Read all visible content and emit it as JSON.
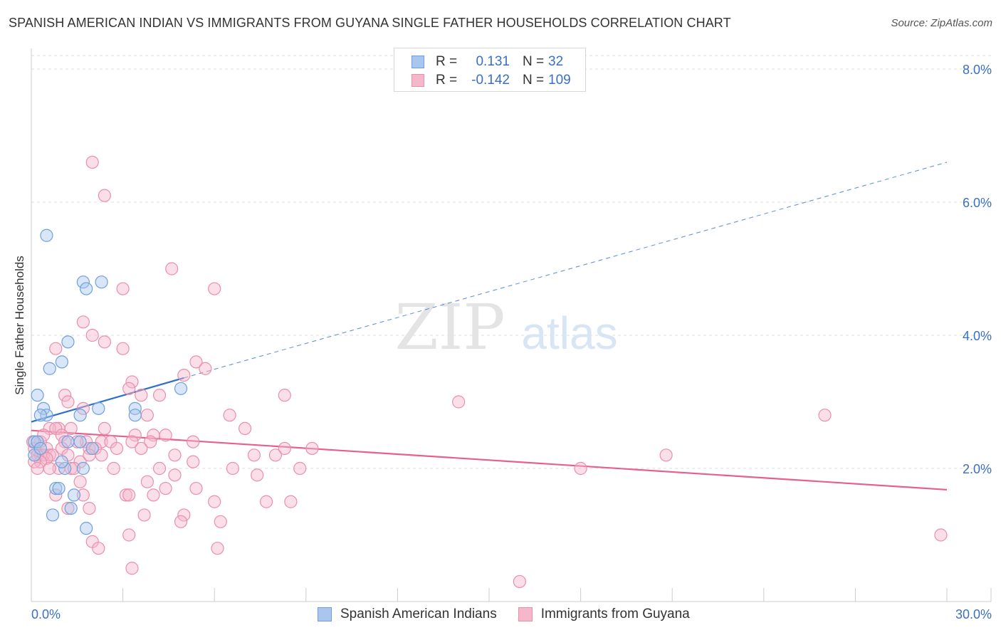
{
  "title": "SPANISH AMERICAN INDIAN VS IMMIGRANTS FROM GUYANA SINGLE FATHER HOUSEHOLDS CORRELATION CHART",
  "source": "Source: ZipAtlas.com",
  "watermark": {
    "zip": "ZIP",
    "atlas": "atlas"
  },
  "legend": {
    "rows": [
      {
        "r_label": "R =",
        "r_value": "0.131",
        "n_label": "N =",
        "n_value": "32"
      },
      {
        "r_label": "R =",
        "r_value": "-0.142",
        "n_label": "N =",
        "n_value": "109"
      }
    ]
  },
  "bottom_legend": {
    "series_a": "Spanish American Indians",
    "series_b": "Immigrants from Guyana"
  },
  "colors": {
    "blue_fill": "#a9c7ee",
    "blue_stroke": "#6f9fdd",
    "blue_line": "#2f6fca",
    "pink_fill": "#f5b8cb",
    "pink_stroke": "#eb8eaa",
    "pink_line": "#e5608d",
    "axis_label": "#3a6fc4",
    "grid": "#dddddd"
  },
  "chart_data": {
    "type": "scatter",
    "title": "SPANISH AMERICAN INDIAN VS IMMIGRANTS FROM GUYANA SINGLE FATHER HOUSEHOLDS CORRELATION CHART",
    "xlabel": "",
    "ylabel": "Single Father Households",
    "xlim": [
      0,
      30
    ],
    "ylim": [
      0,
      8.0
    ],
    "x_tick_labels": [
      "0.0%",
      "30.0%"
    ],
    "y_ticks": [
      2.0,
      4.0,
      6.0,
      8.0
    ],
    "y_tick_labels": [
      "2.0%",
      "4.0%",
      "6.0%",
      "8.0%"
    ],
    "grid": true,
    "series": [
      {
        "name": "Spanish American Indians",
        "r": 0.131,
        "n": 32,
        "trend": {
          "x0": 0.0,
          "y0": 2.7,
          "x1": 5.0,
          "y1": 3.36,
          "dashed_to_x": 30.0,
          "dashed_to_y": 6.6
        },
        "points": [
          [
            0.5,
            5.5
          ],
          [
            1.7,
            4.8
          ],
          [
            2.3,
            4.8
          ],
          [
            1.8,
            4.7
          ],
          [
            1.2,
            3.9
          ],
          [
            1.0,
            3.6
          ],
          [
            0.6,
            3.5
          ],
          [
            0.2,
            3.1
          ],
          [
            0.4,
            2.9
          ],
          [
            0.5,
            2.8
          ],
          [
            0.3,
            2.8
          ],
          [
            1.6,
            2.8
          ],
          [
            2.2,
            2.9
          ],
          [
            3.4,
            2.9
          ],
          [
            3.4,
            2.8
          ],
          [
            4.9,
            3.2
          ],
          [
            0.1,
            2.4
          ],
          [
            0.2,
            2.4
          ],
          [
            1.2,
            2.4
          ],
          [
            1.6,
            2.4
          ],
          [
            1.1,
            2.0
          ],
          [
            1.7,
            2.0
          ],
          [
            0.8,
            1.7
          ],
          [
            0.9,
            1.7
          ],
          [
            1.4,
            1.6
          ],
          [
            0.7,
            1.3
          ],
          [
            1.3,
            1.4
          ],
          [
            1.8,
            1.1
          ],
          [
            0.1,
            2.2
          ],
          [
            0.3,
            2.3
          ],
          [
            1.0,
            2.1
          ],
          [
            2.0,
            2.3
          ]
        ]
      },
      {
        "name": "Immigrants from Guyana",
        "r": -0.142,
        "n": 109,
        "trend": {
          "x0": 0.0,
          "y0": 2.57,
          "x1": 30.0,
          "y1": 1.68
        },
        "points": [
          [
            2.0,
            6.6
          ],
          [
            2.4,
            6.1
          ],
          [
            4.6,
            5.0
          ],
          [
            6.0,
            4.7
          ],
          [
            3.0,
            4.7
          ],
          [
            1.7,
            4.2
          ],
          [
            2.0,
            4.0
          ],
          [
            2.4,
            3.9
          ],
          [
            3.0,
            3.8
          ],
          [
            0.8,
            3.8
          ],
          [
            5.4,
            3.6
          ],
          [
            5.7,
            3.5
          ],
          [
            5.0,
            3.4
          ],
          [
            3.3,
            3.3
          ],
          [
            3.2,
            3.2
          ],
          [
            8.3,
            3.1
          ],
          [
            14.0,
            3.0
          ],
          [
            1.1,
            3.1
          ],
          [
            1.2,
            3.0
          ],
          [
            4.2,
            3.1
          ],
          [
            3.6,
            3.1
          ],
          [
            1.7,
            2.9
          ],
          [
            0.9,
            2.6
          ],
          [
            3.8,
            2.8
          ],
          [
            6.5,
            2.8
          ],
          [
            26.0,
            2.8
          ],
          [
            1.3,
            2.6
          ],
          [
            2.4,
            2.6
          ],
          [
            0.6,
            2.6
          ],
          [
            0.8,
            2.6
          ],
          [
            1.0,
            2.5
          ],
          [
            3.4,
            2.5
          ],
          [
            4.4,
            2.5
          ],
          [
            4.0,
            2.5
          ],
          [
            0.3,
            2.4
          ],
          [
            1.1,
            2.4
          ],
          [
            1.8,
            2.4
          ],
          [
            2.3,
            2.4
          ],
          [
            3.3,
            2.4
          ],
          [
            3.9,
            2.4
          ],
          [
            5.3,
            2.4
          ],
          [
            1.9,
            2.3
          ],
          [
            2.1,
            2.3
          ],
          [
            0.5,
            2.3
          ],
          [
            0.6,
            2.2
          ],
          [
            0.1,
            2.3
          ],
          [
            0.3,
            2.2
          ],
          [
            0.4,
            2.2
          ],
          [
            0.7,
            2.2
          ],
          [
            8.3,
            2.3
          ],
          [
            0.2,
            2.2
          ],
          [
            2.3,
            2.2
          ],
          [
            4.7,
            2.2
          ],
          [
            7.3,
            2.2
          ],
          [
            8.0,
            2.2
          ],
          [
            20.8,
            2.2
          ],
          [
            1.6,
            2.1
          ],
          [
            0.5,
            2.15
          ],
          [
            0.3,
            2.1
          ],
          [
            0.1,
            2.1
          ],
          [
            1.3,
            2.0
          ],
          [
            1.4,
            2.0
          ],
          [
            6.6,
            2.0
          ],
          [
            8.8,
            2.0
          ],
          [
            18.0,
            2.0
          ],
          [
            4.7,
            1.9
          ],
          [
            7.4,
            1.9
          ],
          [
            3.8,
            1.8
          ],
          [
            1.6,
            1.8
          ],
          [
            5.4,
            1.7
          ],
          [
            4.4,
            1.7
          ],
          [
            0.8,
            1.6
          ],
          [
            1.7,
            1.6
          ],
          [
            3.1,
            1.6
          ],
          [
            3.2,
            1.6
          ],
          [
            4.0,
            1.6
          ],
          [
            7.7,
            1.5
          ],
          [
            8.5,
            1.5
          ],
          [
            6.0,
            1.5
          ],
          [
            1.2,
            1.4
          ],
          [
            1.9,
            1.4
          ],
          [
            3.7,
            1.3
          ],
          [
            5.0,
            1.3
          ],
          [
            6.2,
            1.2
          ],
          [
            4.9,
            1.2
          ],
          [
            3.2,
            1.0
          ],
          [
            2.0,
            0.9
          ],
          [
            2.2,
            0.8
          ],
          [
            6.1,
            0.8
          ],
          [
            3.3,
            0.5
          ],
          [
            16.0,
            0.3
          ],
          [
            29.8,
            1.0
          ],
          [
            0.2,
            2.0
          ],
          [
            1.0,
            2.3
          ],
          [
            1.5,
            2.4
          ],
          [
            2.6,
            2.4
          ],
          [
            0.9,
            2.0
          ],
          [
            1.9,
            2.2
          ],
          [
            2.7,
            2.0
          ],
          [
            3.6,
            2.3
          ],
          [
            5.3,
            2.1
          ],
          [
            7.0,
            2.6
          ],
          [
            0.4,
            2.5
          ],
          [
            1.2,
            2.2
          ],
          [
            0.6,
            2.0
          ],
          [
            2.8,
            2.3
          ],
          [
            4.2,
            2.0
          ],
          [
            0.05,
            2.4
          ],
          [
            9.2,
            2.3
          ]
        ]
      }
    ]
  }
}
